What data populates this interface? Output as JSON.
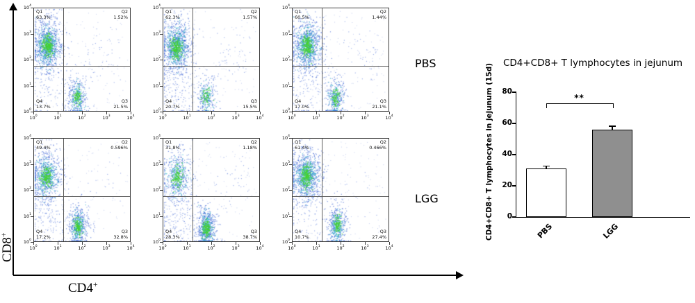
{
  "figure": {
    "axes": {
      "y_base": "CD8",
      "y_sup": "+",
      "x_base": "CD4",
      "x_sup": "+"
    },
    "rows": [
      {
        "label": "PBS"
      },
      {
        "label": "LGG"
      }
    ],
    "flow_tick_base": "10",
    "flow_axis_ticks": [
      "0",
      "1",
      "2",
      "3",
      "4"
    ],
    "quadrant_names": {
      "q1": "Q1",
      "q2": "Q2",
      "q3": "Q3",
      "q4": "Q4"
    },
    "flow_panels": [
      {
        "group": "PBS",
        "q1_pct": "63.3%",
        "q2_pct": "1.52%",
        "q3_pct": "21.5%",
        "q4_pct": "13.7%"
      },
      {
        "group": "PBS",
        "q1_pct": "62.3%",
        "q2_pct": "1.57%",
        "q3_pct": "15.5%",
        "q4_pct": "20.7%"
      },
      {
        "group": "PBS",
        "q1_pct": "60.5%",
        "q2_pct": "1.44%",
        "q3_pct": "21.1%",
        "q4_pct": "17.0%"
      },
      {
        "group": "LGG",
        "q1_pct": "49.4%",
        "q2_pct": "0.596%",
        "q3_pct": "32.8%",
        "q4_pct": "17.2%"
      },
      {
        "group": "LGG",
        "q1_pct": "31.8%",
        "q2_pct": "1.18%",
        "q3_pct": "38.7%",
        "q4_pct": "28.3%"
      },
      {
        "group": "LGG",
        "q1_pct": "61.4%",
        "q2_pct": "0.466%",
        "q3_pct": "27.4%",
        "q4_pct": "10.7%"
      }
    ]
  },
  "bar_chart": {
    "title": "CD4+CD8+ T lymphocytes in jejunum",
    "ylabel": "CD4+CD8+ T lymphocytes in jejunum (15d)",
    "yticks": [
      "0",
      "20",
      "40",
      "60",
      "80"
    ],
    "sig": "**",
    "bars": [
      {
        "label": "PBS",
        "value": 31,
        "err": 2,
        "fill": "#ffffff"
      },
      {
        "label": "LGG",
        "value": 56,
        "err": 2.5,
        "fill": "#8f8f8f"
      }
    ]
  },
  "chart_data": [
    {
      "type": "bar",
      "categories": [
        "PBS",
        "LGG"
      ],
      "values": [
        31,
        56
      ],
      "errors": [
        2,
        2.5
      ],
      "title": "CD4+CD8+ T lymphocytes in jejunum",
      "xlabel": "",
      "ylabel": "CD4+CD8+ T lymphocytes in jejunum (15d)",
      "ylim": [
        0,
        80
      ],
      "significance": "** between PBS and LGG",
      "bar_colors": [
        "#ffffff",
        "#8f8f8f"
      ]
    },
    {
      "type": "scatter",
      "subtype": "flow-cytometry-quadrants",
      "x_axis": "CD4+ (log10 scale, 10^0 to 10^4)",
      "y_axis": "CD8+ (log10 scale, 10^0 to 10^4)",
      "panels": [
        {
          "group": "PBS",
          "Q1": 63.3,
          "Q2": 1.52,
          "Q3": 21.5,
          "Q4": 13.7
        },
        {
          "group": "PBS",
          "Q1": 62.3,
          "Q2": 1.57,
          "Q3": 15.5,
          "Q4": 20.7
        },
        {
          "group": "PBS",
          "Q1": 60.5,
          "Q2": 1.44,
          "Q3": 21.1,
          "Q4": 17.0
        },
        {
          "group": "LGG",
          "Q1": 49.4,
          "Q2": 0.596,
          "Q3": 32.8,
          "Q4": 17.2
        },
        {
          "group": "LGG",
          "Q1": 31.8,
          "Q2": 1.18,
          "Q3": 38.7,
          "Q4": 28.3
        },
        {
          "group": "LGG",
          "Q1": 61.4,
          "Q2": 0.466,
          "Q3": 27.4,
          "Q4": 10.7
        }
      ]
    }
  ]
}
